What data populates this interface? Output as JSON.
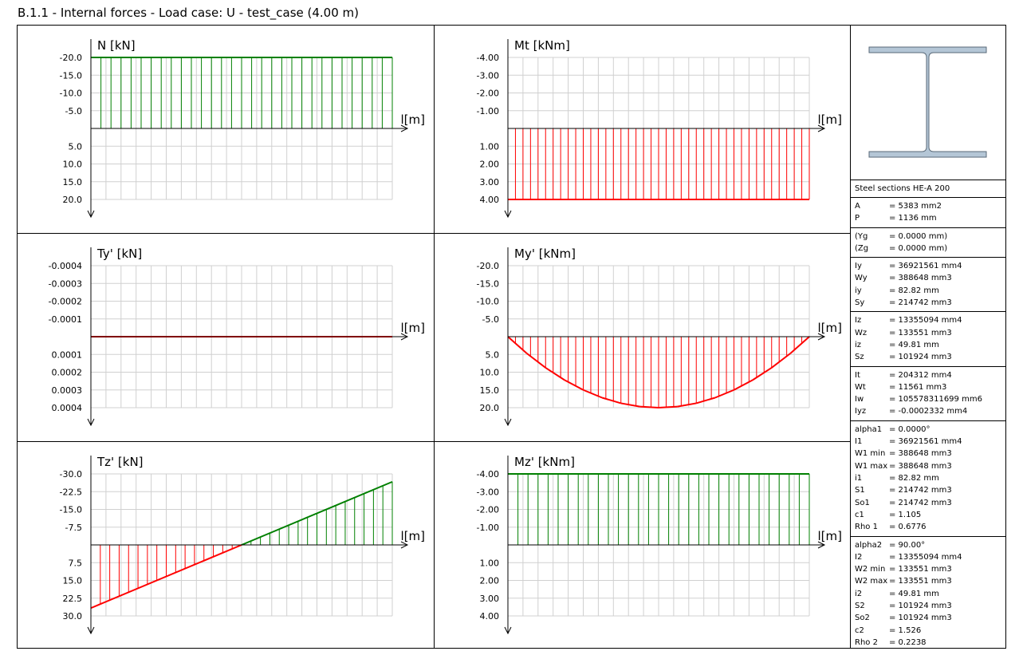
{
  "window": {
    "title": "B.1.1 - Internal forces - Load case: U - test_case (4.00 m)"
  },
  "chart_data": [
    {
      "type": "area",
      "id": "N",
      "title": "N [kN]",
      "xlabel": "l[m]",
      "ylim": [
        -20,
        20
      ],
      "invert_y": true,
      "yticks": [
        {
          "v": -20,
          "t": "-20.0"
        },
        {
          "v": -15,
          "t": "-15.0"
        },
        {
          "v": -10,
          "t": "-10.0"
        },
        {
          "v": -5,
          "t": "-5.0"
        },
        {
          "v": 5,
          "t": "5.0"
        },
        {
          "v": 10,
          "t": "10.0"
        },
        {
          "v": 15,
          "t": "15.0"
        },
        {
          "v": 20,
          "t": "20.0"
        }
      ],
      "x": [
        0,
        4
      ],
      "values": [
        -20,
        -20
      ],
      "hatch": 30,
      "colors": {
        "negative": "#008000",
        "positive": "#ff0000"
      }
    },
    {
      "type": "area",
      "id": "Mt",
      "title": "Mt [kNm]",
      "xlabel": "l[m]",
      "ylim": [
        -4,
        4
      ],
      "invert_y": true,
      "yticks": [
        {
          "v": -4,
          "t": "-4.00"
        },
        {
          "v": -3,
          "t": "-3.00"
        },
        {
          "v": -2,
          "t": "-2.00"
        },
        {
          "v": -1,
          "t": "-1.00"
        },
        {
          "v": 1,
          "t": "1.00"
        },
        {
          "v": 2,
          "t": "2.00"
        },
        {
          "v": 3,
          "t": "3.00"
        },
        {
          "v": 4,
          "t": "4.00"
        }
      ],
      "x": [
        0,
        4
      ],
      "values": [
        4,
        4
      ],
      "hatch": 40,
      "colors": {
        "negative": "#008000",
        "positive": "#ff0000"
      }
    },
    {
      "type": "line",
      "id": "Ty",
      "title": "Ty' [kN]",
      "xlabel": "l[m]",
      "ylim": [
        -0.0004,
        0.0004
      ],
      "invert_y": true,
      "yticks": [
        {
          "v": -0.0004,
          "t": "-0.0004"
        },
        {
          "v": -0.0003,
          "t": "-0.0003"
        },
        {
          "v": -0.0002,
          "t": "-0.0002"
        },
        {
          "v": -0.0001,
          "t": "-0.0001"
        },
        {
          "v": 0.0001,
          "t": "0.0001"
        },
        {
          "v": 0.0002,
          "t": "0.0002"
        },
        {
          "v": 0.0003,
          "t": "0.0003"
        },
        {
          "v": 0.0004,
          "t": "0.0004"
        }
      ],
      "x": [
        0,
        4
      ],
      "values": [
        0,
        0
      ],
      "hatch": 0,
      "colors": {
        "negative": "#008000",
        "positive": "#ff0000"
      }
    },
    {
      "type": "area",
      "id": "My",
      "title": "My' [kNm]",
      "xlabel": "l[m]",
      "ylim": [
        -20,
        20
      ],
      "invert_y": true,
      "yticks": [
        {
          "v": -20,
          "t": "-20.0"
        },
        {
          "v": -15,
          "t": "-15.0"
        },
        {
          "v": -10,
          "t": "-10.0"
        },
        {
          "v": -5,
          "t": "-5.0"
        },
        {
          "v": 5,
          "t": "5.0"
        },
        {
          "v": 10,
          "t": "10.0"
        },
        {
          "v": 15,
          "t": "15.0"
        },
        {
          "v": 20,
          "t": "20.0"
        }
      ],
      "x": [
        0,
        0.25,
        0.5,
        0.75,
        1,
        1.25,
        1.5,
        1.75,
        2,
        2.25,
        2.5,
        2.75,
        3,
        3.25,
        3.5,
        3.75,
        4
      ],
      "values": [
        0,
        4.69,
        8.75,
        12.19,
        15,
        17.19,
        18.75,
        19.69,
        20,
        19.69,
        18.75,
        17.19,
        15,
        12.19,
        8.75,
        4.69,
        0
      ],
      "hatch": 40,
      "colors": {
        "negative": "#008000",
        "positive": "#ff0000"
      }
    },
    {
      "type": "area",
      "id": "Tz",
      "title": "Tz' [kN]",
      "xlabel": "l[m]",
      "ylim": [
        -30,
        30
      ],
      "invert_y": true,
      "yticks": [
        {
          "v": -30,
          "t": "-30.0"
        },
        {
          "v": -22.5,
          "t": "-22.5"
        },
        {
          "v": -15,
          "t": "-15.0"
        },
        {
          "v": -7.5,
          "t": "-7.5"
        },
        {
          "v": 7.5,
          "t": "7.5"
        },
        {
          "v": 15,
          "t": "15.0"
        },
        {
          "v": 22.5,
          "t": "22.5"
        },
        {
          "v": 30,
          "t": "30.0"
        }
      ],
      "x": [
        0,
        4
      ],
      "values": [
        26.67,
        -26.67
      ],
      "hatch": 32,
      "colors": {
        "negative": "#008000",
        "positive": "#ff0000"
      }
    },
    {
      "type": "area",
      "id": "Mz",
      "title": "Mz' [kNm]",
      "xlabel": "l[m]",
      "ylim": [
        -4,
        4
      ],
      "invert_y": true,
      "yticks": [
        {
          "v": -4,
          "t": "-4.00"
        },
        {
          "v": -3,
          "t": "-3.00"
        },
        {
          "v": -2,
          "t": "-2.00"
        },
        {
          "v": -1,
          "t": "-1.00"
        },
        {
          "v": 1,
          "t": "1.00"
        },
        {
          "v": 2,
          "t": "2.00"
        },
        {
          "v": 3,
          "t": "3.00"
        },
        {
          "v": 4,
          "t": "4.00"
        }
      ],
      "x": [
        0,
        4
      ],
      "values": [
        -4,
        -4
      ],
      "hatch": 30,
      "colors": {
        "negative": "#008000",
        "positive": "#ff0000"
      }
    }
  ],
  "section": {
    "title": "Steel sections HE-A 200",
    "colors": {
      "fill": "#b4c6d6",
      "stroke": "#5a6a78"
    },
    "groups": [
      [
        {
          "name": "A",
          "value": "= 5383 mm2"
        },
        {
          "name": "P",
          "value": "= 1136 mm"
        }
      ],
      [
        {
          "name": "(Yg",
          "value": "= 0.0000 mm)"
        },
        {
          "name": "(Zg",
          "value": "= 0.0000 mm)"
        }
      ],
      [
        {
          "name": "Iy",
          "value": "= 36921561 mm4"
        },
        {
          "name": "Wy",
          "value": "= 388648 mm3"
        },
        {
          "name": "iy",
          "value": "= 82.82 mm"
        },
        {
          "name": "Sy",
          "value": "= 214742 mm3"
        }
      ],
      [
        {
          "name": "Iz",
          "value": "= 13355094 mm4"
        },
        {
          "name": "Wz",
          "value": "= 133551 mm3"
        },
        {
          "name": "iz",
          "value": "= 49.81 mm"
        },
        {
          "name": "Sz",
          "value": "= 101924 mm3"
        }
      ],
      [
        {
          "name": "It",
          "value": "= 204312 mm4"
        },
        {
          "name": "Wt",
          "value": "= 11561 mm3"
        },
        {
          "name": "Iw",
          "value": "= 105578311699 mm6"
        },
        {
          "name": "Iyz",
          "value": "= -0.0002332 mm4"
        }
      ],
      [
        {
          "name": "alpha1",
          "value": "= 0.0000°"
        },
        {
          "name": "I1",
          "value": "= 36921561 mm4"
        },
        {
          "name": "W1 min",
          "value": "= 388648 mm3"
        },
        {
          "name": "W1 max",
          "value": "= 388648 mm3"
        },
        {
          "name": "i1",
          "value": "= 82.82 mm"
        },
        {
          "name": "S1",
          "value": "= 214742 mm3"
        },
        {
          "name": "So1",
          "value": "= 214742 mm3"
        },
        {
          "name": "c1",
          "value": "= 1.105"
        },
        {
          "name": "Rho 1",
          "value": "= 0.6776"
        }
      ],
      [
        {
          "name": "alpha2",
          "value": "= 90.00°"
        },
        {
          "name": "I2",
          "value": "= 13355094 mm4"
        },
        {
          "name": "W2 min",
          "value": "= 133551 mm3"
        },
        {
          "name": "W2 max",
          "value": "= 133551 mm3"
        },
        {
          "name": "i2",
          "value": "= 49.81 mm"
        },
        {
          "name": "S2",
          "value": "= 101924 mm3"
        },
        {
          "name": "So2",
          "value": "= 101924 mm3"
        },
        {
          "name": "c2",
          "value": "= 1.526"
        },
        {
          "name": "Rho 2",
          "value": "= 0.2238"
        }
      ]
    ]
  }
}
